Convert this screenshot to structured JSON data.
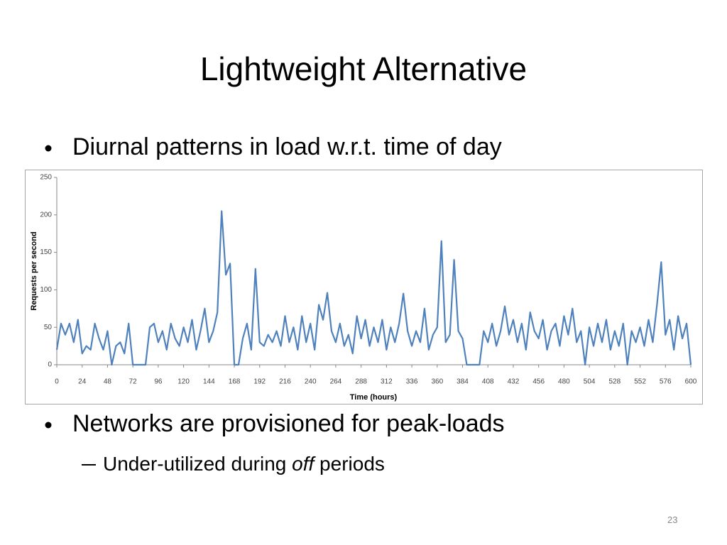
{
  "slide": {
    "title": "Lightweight Alternative",
    "bullets": [
      "Diurnal patterns in load w.r.t. time of day",
      "Networks are provisioned for peak-loads"
    ],
    "sub_bullet": [
      "Under-utilized during ",
      "off",
      " periods"
    ],
    "page_number": "23"
  },
  "chart_data": {
    "type": "line",
    "x_label": "Time (hours)",
    "y_label": "Requests per second",
    "color": "#4f81bd",
    "x": [
      0,
      4,
      8,
      12,
      16,
      20,
      24,
      28,
      32,
      36,
      40,
      44,
      48,
      52,
      56,
      60,
      64,
      68,
      72,
      76,
      80,
      84,
      88,
      92,
      96,
      100,
      104,
      108,
      112,
      116,
      120,
      124,
      128,
      132,
      136,
      140,
      144,
      148,
      152,
      156,
      160,
      164,
      168,
      172,
      176,
      180,
      184,
      188,
      192,
      196,
      200,
      204,
      208,
      212,
      216,
      220,
      224,
      228,
      232,
      236,
      240,
      244,
      248,
      252,
      256,
      260,
      264,
      268,
      272,
      276,
      280,
      284,
      288,
      292,
      296,
      300,
      304,
      308,
      312,
      316,
      320,
      324,
      328,
      332,
      336,
      340,
      344,
      348,
      352,
      356,
      360,
      364,
      368,
      372,
      376,
      380,
      384,
      388,
      392,
      396,
      400,
      404,
      408,
      412,
      416,
      420,
      424,
      428,
      432,
      436,
      440,
      444,
      448,
      452,
      456,
      460,
      464,
      468,
      472,
      476,
      480,
      484,
      488,
      492,
      496,
      500,
      504,
      508,
      512,
      516,
      520,
      524,
      528,
      532,
      536,
      540,
      544,
      548,
      552,
      556,
      560,
      564,
      568,
      572,
      576,
      580,
      584,
      588,
      592,
      596,
      600
    ],
    "values": [
      20,
      55,
      40,
      55,
      30,
      60,
      15,
      25,
      20,
      55,
      35,
      20,
      45,
      0,
      25,
      30,
      15,
      55,
      0,
      0,
      0,
      0,
      50,
      55,
      30,
      45,
      20,
      55,
      35,
      25,
      50,
      30,
      60,
      20,
      45,
      75,
      30,
      45,
      70,
      205,
      120,
      135,
      0,
      0,
      35,
      55,
      20,
      128,
      30,
      25,
      40,
      30,
      45,
      25,
      65,
      30,
      50,
      20,
      65,
      30,
      55,
      20,
      80,
      60,
      96,
      45,
      30,
      55,
      25,
      40,
      15,
      65,
      35,
      60,
      25,
      50,
      30,
      60,
      20,
      50,
      30,
      55,
      95,
      45,
      25,
      45,
      30,
      75,
      20,
      40,
      50,
      165,
      30,
      40,
      140,
      45,
      35,
      0,
      0,
      0,
      0,
      45,
      30,
      55,
      25,
      45,
      78,
      40,
      60,
      30,
      55,
      20,
      70,
      45,
      35,
      60,
      20,
      45,
      55,
      25,
      65,
      40,
      75,
      30,
      45,
      0,
      50,
      25,
      55,
      30,
      60,
      20,
      45,
      25,
      55,
      0,
      45,
      30,
      50,
      25,
      60,
      30,
      80,
      137,
      40,
      60,
      20,
      65,
      35,
      55,
      0
    ],
    "xlim": [
      0,
      600
    ],
    "xticks": [
      0,
      24,
      48,
      72,
      96,
      120,
      144,
      168,
      192,
      216,
      240,
      264,
      288,
      312,
      336,
      360,
      384,
      408,
      432,
      456,
      480,
      504,
      528,
      552,
      576,
      600
    ],
    "ylim": [
      0,
      250
    ],
    "yticks": [
      0,
      50,
      100,
      150,
      200,
      250
    ]
  }
}
